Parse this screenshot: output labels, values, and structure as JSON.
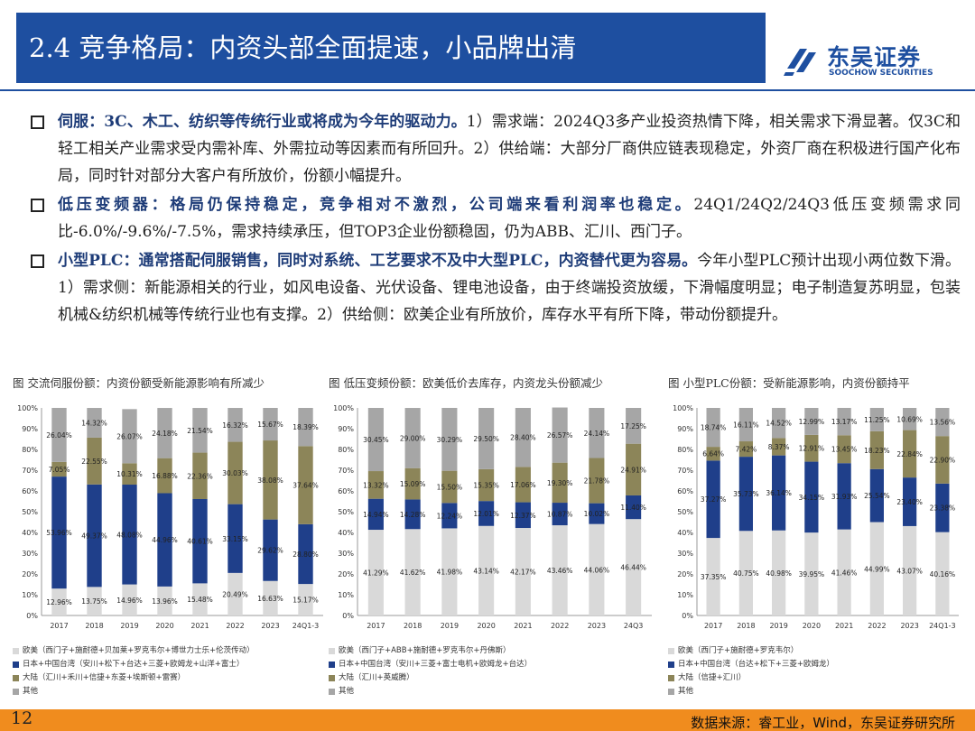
{
  "header": {
    "title": "2.4 竞争格局：内资头部全面提速，小品牌出清",
    "logo_cn": "东吴证券",
    "logo_en": "SOOCHOW SECURITIES"
  },
  "bullets": [
    {
      "lead": "伺服：3C、木工、纺织等传统行业或将成为今年的驱动力。",
      "text": "1）需求端：2024Q3多产业投资热情下降，相关需求下滑显著。仅3C和轻工相关产业需求受内需补库、外需拉动等因素而有所回升。2）供给端：大部分厂商供应链表现稳定，外资厂商在积极进行国产化布局，同时针对部分大客户有所放价，份额小幅提升。"
    },
    {
      "lead": "低压变频器：格局仍保持稳定，竞争相对不激烈，公司端来看利润率也稳定。",
      "text": "24Q1/24Q2/24Q3低压变频需求同比-6.0%/-9.6%/-7.5%，需求持续承压，但TOP3企业份额稳固，仍为ABB、汇川、西门子。"
    },
    {
      "lead": "小型PLC：通常搭配伺服销售，同时对系统、工艺要求不及中大型PLC，内资替代更为容易。",
      "text": "今年小型PLC预计出现小两位数下滑。1）需求侧：新能源相关的行业，如风电设备、光伏设备、锂电池设备，由于终端投资放缓，下滑幅度明显；电子制造复苏明显，包装机械&纺织机械等传统行业也有支撑。2）供给侧：欧美企业有所放价，库存水平有所下降，带动份额提升。"
    }
  ],
  "colors": {
    "foreign": "#d9d9d9",
    "japan_taiwan": "#1f3f8a",
    "domestic": "#8c8559",
    "other": "#a6a6a6",
    "title_bg": "#1e4fa0",
    "footer_bg": "#f08c1e"
  },
  "chart_data": [
    {
      "type": "bar",
      "stacked": true,
      "title": "图 交流伺服份额：内资份额受新能源影响有所减少",
      "categories": [
        "2017",
        "2018",
        "2019",
        "2020",
        "2021",
        "2022",
        "2023",
        "24Q1-3"
      ],
      "ylim": [
        0,
        100
      ],
      "yticks": [
        "0%",
        "10%",
        "20%",
        "30%",
        "40%",
        "50%",
        "60%",
        "70%",
        "80%",
        "90%",
        "100%"
      ],
      "series": [
        {
          "name": "欧美（西门子+施耐德+贝加莱+罗克韦尔+博世力士乐+伦茨传动）",
          "color": "#d9d9d9",
          "values": [
            12.96,
            13.75,
            14.96,
            13.96,
            15.48,
            20.49,
            16.63,
            15.17
          ],
          "labels": [
            "12.96%",
            "13.75%",
            "14.96%",
            "13.96%",
            "15.48%",
            "20.49%",
            "16.63%",
            "15.17%"
          ]
        },
        {
          "name": "日本+中国台湾（安川+松下+台达+三菱+欧姆龙+山洋+富士）",
          "color": "#1f3f8a",
          "values": [
            53.96,
            49.37,
            48.08,
            44.96,
            40.61,
            33.15,
            29.62,
            28.8
          ],
          "labels": [
            "53.96%",
            "49.37%",
            "48.08%",
            "44.96%",
            "40.61%",
            "33.15%",
            "29.62%",
            "28.80%"
          ]
        },
        {
          "name": "大陆（汇川+禾川+信捷+东菱+埃斯顿+雷赛）",
          "color": "#8c8559",
          "values": [
            7.05,
            22.55,
            10.31,
            16.88,
            22.36,
            30.03,
            38.08,
            37.64
          ],
          "labels": [
            "7.05%",
            "22.55%",
            "10.31%",
            "16.88%",
            "22.36%",
            "30.03%",
            "38.08%",
            "37.64%"
          ]
        },
        {
          "name": "其他",
          "color": "#a6a6a6",
          "values": [
            26.04,
            14.32,
            26.07,
            24.18,
            21.54,
            16.32,
            15.67,
            18.39
          ],
          "labels": [
            "26.04%",
            "14.32%",
            "26.07%",
            "24.18%",
            "21.54%",
            "16.32%",
            "15.67%",
            "18.39%"
          ]
        }
      ]
    },
    {
      "type": "bar",
      "stacked": true,
      "title": "图 低压变频份额：欧美低价去库存，内资龙头份额减少",
      "categories": [
        "2017",
        "2018",
        "2019",
        "2020",
        "2021",
        "2022",
        "2023",
        "24Q3"
      ],
      "ylim": [
        0,
        100
      ],
      "yticks": [
        "0%",
        "10%",
        "20%",
        "30%",
        "40%",
        "50%",
        "60%",
        "70%",
        "80%",
        "90%",
        "100%"
      ],
      "series": [
        {
          "name": "欧美（西门子+ABB+施耐德+罗克韦尔+丹佛斯）",
          "color": "#d9d9d9",
          "values": [
            41.29,
            41.62,
            41.98,
            43.14,
            42.17,
            43.46,
            44.06,
            46.44
          ],
          "labels": [
            "41.29%",
            "41.62%",
            "41.98%",
            "43.14%",
            "42.17%",
            "43.46%",
            "44.06%",
            "46.44%"
          ]
        },
        {
          "name": "日本+中国台湾（安川+三菱+富士电机+欧姆龙+台达）",
          "color": "#1f3f8a",
          "values": [
            14.94,
            14.28,
            12.24,
            12.01,
            12.37,
            10.87,
            10.02,
            11.4
          ],
          "labels": [
            "14.94%",
            "14.28%",
            "12.24%",
            "12.01%",
            "12.37%",
            "10.87%",
            "10.02%",
            "11.40%"
          ]
        },
        {
          "name": "大陆（汇川+英威腾）",
          "color": "#8c8559",
          "values": [
            13.32,
            15.09,
            15.5,
            15.35,
            17.06,
            19.3,
            21.78,
            24.91
          ],
          "labels": [
            "13.32%",
            "15.09%",
            "15.50%",
            "15.35%",
            "17.06%",
            "19.30%",
            "21.78%",
            "24.91%"
          ]
        },
        {
          "name": "其他",
          "color": "#a6a6a6",
          "values": [
            30.45,
            29.0,
            30.29,
            29.5,
            28.4,
            26.57,
            24.14,
            17.25
          ],
          "labels": [
            "30.45%",
            "29.00%",
            "30.29%",
            "29.50%",
            "28.40%",
            "26.57%",
            "24.14%",
            "17.25%"
          ]
        }
      ]
    },
    {
      "type": "bar",
      "stacked": true,
      "title": "图 小型PLC份额：受新能源影响，内资份额持平",
      "categories": [
        "2017",
        "2018",
        "2019",
        "2020",
        "2021",
        "2022",
        "2023",
        "24Q1-3"
      ],
      "ylim": [
        0,
        100
      ],
      "yticks": [
        "0%",
        "10%",
        "20%",
        "30%",
        "40%",
        "50%",
        "60%",
        "70%",
        "80%",
        "90%",
        "100%"
      ],
      "series": [
        {
          "name": "欧美（西门子+施耐德+罗克韦尔）",
          "color": "#d9d9d9",
          "values": [
            37.35,
            40.75,
            40.98,
            39.95,
            41.46,
            44.99,
            43.07,
            40.16
          ],
          "labels": [
            "37.35%",
            "40.75%",
            "40.98%",
            "39.95%",
            "41.46%",
            "44.99%",
            "43.07%",
            "40.16%"
          ]
        },
        {
          "name": "日本+中国台湾（台达+松下+三菱+欧姆龙）",
          "color": "#1f3f8a",
          "values": [
            37.27,
            35.73,
            36.14,
            34.15,
            31.93,
            25.54,
            23.4,
            23.38
          ],
          "labels": [
            "37.27%",
            "35.73%",
            "36.14%",
            "34.15%",
            "31.93%",
            "25.54%",
            "23.40%",
            "23.38%"
          ]
        },
        {
          "name": "大陆（信捷+汇川）",
          "color": "#8c8559",
          "values": [
            6.64,
            7.42,
            8.37,
            12.91,
            13.45,
            18.23,
            22.84,
            22.9
          ],
          "labels": [
            "6.64%",
            "7.42%",
            "8.37%",
            "12.91%",
            "13.45%",
            "18.23%",
            "22.84%",
            "22.90%"
          ]
        },
        {
          "name": "其他",
          "color": "#a6a6a6",
          "values": [
            18.74,
            16.11,
            14.52,
            12.99,
            13.17,
            11.25,
            10.69,
            13.56
          ],
          "labels": [
            "18.74%",
            "16.11%",
            "14.52%",
            "12.99%",
            "13.17%",
            "11.25%",
            "10.69%",
            "13.56%"
          ]
        }
      ]
    }
  ],
  "footer": {
    "page_number": "12",
    "source": "数据来源：睿工业，Wind，东吴证券研究所"
  }
}
